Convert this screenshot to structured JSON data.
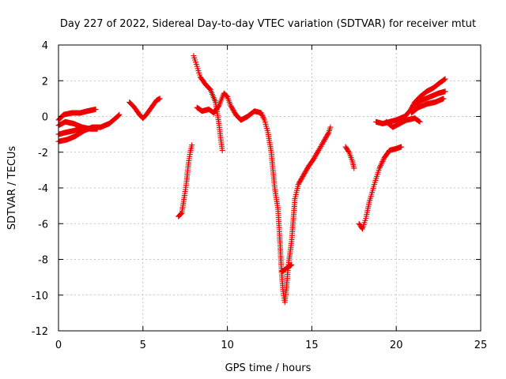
{
  "chart_data": {
    "type": "scatter",
    "title": "Day 227 of 2022, Sidereal Day-to-day VTEC variation (SDTVAR) for receiver mtut",
    "xlabel": "GPS time / hours",
    "ylabel": "SDTVAR / TECUs",
    "xlim": [
      0,
      25
    ],
    "ylim": [
      -12,
      4
    ],
    "xticks": [
      0,
      5,
      10,
      15,
      20,
      25
    ],
    "yticks": [
      -12,
      -10,
      -8,
      -6,
      -4,
      -2,
      0,
      2,
      4
    ],
    "grid": true,
    "marker": "plus",
    "color": "#ee0000",
    "segments": [
      [
        [
          0.0,
          -0.2
        ],
        [
          0.3,
          0.1
        ],
        [
          0.8,
          0.2
        ],
        [
          1.3,
          0.2
        ],
        [
          1.7,
          0.3
        ],
        [
          2.2,
          0.4
        ]
      ],
      [
        [
          0.0,
          -0.5
        ],
        [
          0.4,
          -0.3
        ],
        [
          0.9,
          -0.4
        ],
        [
          1.4,
          -0.6
        ],
        [
          1.9,
          -0.7
        ],
        [
          2.3,
          -0.7
        ]
      ],
      [
        [
          0.0,
          -1.0
        ],
        [
          0.4,
          -0.9
        ],
        [
          0.9,
          -0.8
        ],
        [
          1.3,
          -0.7
        ]
      ],
      [
        [
          0.0,
          -1.4
        ],
        [
          0.5,
          -1.3
        ],
        [
          1.0,
          -1.1
        ],
        [
          1.5,
          -0.8
        ],
        [
          2.0,
          -0.6
        ],
        [
          2.5,
          -0.6
        ],
        [
          3.0,
          -0.4
        ],
        [
          3.5,
          -0.0
        ],
        [
          3.6,
          0.1
        ]
      ],
      [
        [
          4.2,
          0.8
        ],
        [
          4.5,
          0.5
        ],
        [
          4.8,
          0.1
        ],
        [
          5.0,
          -0.1
        ],
        [
          5.2,
          0.1
        ],
        [
          5.5,
          0.5
        ],
        [
          5.8,
          0.9
        ],
        [
          6.0,
          1.0
        ]
      ],
      [
        [
          7.1,
          -5.6
        ],
        [
          7.3,
          -5.4
        ],
        [
          7.5,
          -4.2
        ],
        [
          7.6,
          -3.5
        ],
        [
          7.7,
          -2.6
        ],
        [
          7.8,
          -2.0
        ],
        [
          7.9,
          -1.6
        ]
      ],
      [
        [
          8.0,
          3.4
        ],
        [
          8.2,
          2.8
        ],
        [
          8.4,
          2.2
        ],
        [
          8.7,
          1.8
        ],
        [
          9.0,
          1.5
        ],
        [
          9.3,
          0.8
        ],
        [
          9.5,
          -0.4
        ],
        [
          9.6,
          -1.2
        ],
        [
          9.7,
          -1.9
        ]
      ],
      [
        [
          8.2,
          0.5
        ],
        [
          8.5,
          0.3
        ],
        [
          8.9,
          0.4
        ],
        [
          9.2,
          0.2
        ],
        [
          9.5,
          0.6
        ],
        [
          9.8,
          1.3
        ],
        [
          10.0,
          1.1
        ],
        [
          10.2,
          0.6
        ],
        [
          10.5,
          0.1
        ],
        [
          10.8,
          -0.2
        ],
        [
          11.2,
          0.0
        ],
        [
          11.6,
          0.3
        ],
        [
          12.0,
          0.2
        ],
        [
          12.2,
          -0.2
        ],
        [
          12.4,
          -0.9
        ],
        [
          12.6,
          -2.0
        ],
        [
          12.7,
          -3.0
        ],
        [
          12.8,
          -4.0
        ],
        [
          13.0,
          -5.2
        ],
        [
          13.1,
          -6.8
        ],
        [
          13.2,
          -8.6
        ],
        [
          13.3,
          -9.8
        ],
        [
          13.4,
          -10.4
        ],
        [
          13.5,
          -9.6
        ],
        [
          13.6,
          -8.4
        ],
        [
          13.8,
          -7.0
        ],
        [
          13.9,
          -5.8
        ],
        [
          14.0,
          -4.6
        ],
        [
          14.2,
          -3.8
        ],
        [
          14.5,
          -3.3
        ],
        [
          14.8,
          -2.8
        ],
        [
          15.1,
          -2.4
        ],
        [
          15.4,
          -1.9
        ],
        [
          15.7,
          -1.4
        ],
        [
          16.0,
          -0.9
        ],
        [
          16.1,
          -0.6
        ]
      ],
      [
        [
          13.2,
          -8.7
        ],
        [
          13.5,
          -8.5
        ],
        [
          13.8,
          -8.3
        ]
      ],
      [
        [
          17.0,
          -1.7
        ],
        [
          17.2,
          -2.0
        ],
        [
          17.4,
          -2.5
        ],
        [
          17.5,
          -2.9
        ]
      ],
      [
        [
          17.8,
          -6.0
        ],
        [
          18.0,
          -6.3
        ],
        [
          18.2,
          -5.7
        ],
        [
          18.4,
          -4.8
        ],
        [
          18.7,
          -3.8
        ],
        [
          19.0,
          -2.9
        ],
        [
          19.3,
          -2.3
        ],
        [
          19.6,
          -1.9
        ],
        [
          20.0,
          -1.8
        ],
        [
          20.3,
          -1.7
        ]
      ],
      [
        [
          18.8,
          -0.3
        ],
        [
          19.2,
          -0.4
        ],
        [
          19.6,
          -0.3
        ],
        [
          20.0,
          -0.2
        ],
        [
          20.5,
          0.0
        ],
        [
          20.8,
          0.3
        ],
        [
          21.1,
          0.8
        ],
        [
          21.4,
          1.1
        ],
        [
          21.8,
          1.4
        ],
        [
          22.2,
          1.6
        ],
        [
          22.6,
          1.9
        ],
        [
          22.9,
          2.1
        ]
      ],
      [
        [
          19.4,
          -0.3
        ],
        [
          19.8,
          -0.6
        ],
        [
          20.2,
          -0.4
        ],
        [
          20.6,
          -0.2
        ],
        [
          21.1,
          -0.1
        ],
        [
          21.4,
          -0.3
        ]
      ],
      [
        [
          20.9,
          0.2
        ],
        [
          21.3,
          0.5
        ],
        [
          21.8,
          0.7
        ],
        [
          22.3,
          0.8
        ],
        [
          22.8,
          1.0
        ]
      ],
      [
        [
          21.0,
          0.6
        ],
        [
          21.5,
          0.9
        ],
        [
          22.0,
          1.1
        ],
        [
          22.5,
          1.3
        ],
        [
          22.9,
          1.4
        ]
      ]
    ]
  }
}
